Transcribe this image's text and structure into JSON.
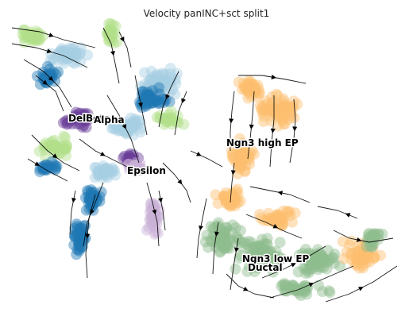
{
  "chart_data": {
    "type": "scatter",
    "title": "Velocity panINC+sct split1",
    "grid": false,
    "axes_visible": false,
    "legend": "on data",
    "clusters": [
      {
        "name": "Delta",
        "color": "#b2df8a"
      },
      {
        "name": "Beta",
        "color": "#1f78b4"
      },
      {
        "name": "Alpha",
        "color": "#a6cee3"
      },
      {
        "name": "Epsilon",
        "color": "#6a3d9a"
      },
      {
        "name": "Epsilon",
        "color": "#cab2d6"
      },
      {
        "name": "Ngn3 high EP",
        "color": "#fdbf6f"
      },
      {
        "name": "Ngn3 low EP",
        "color": "#fdbf6f"
      },
      {
        "name": "Ductal",
        "color": "#8fbc8f"
      }
    ],
    "labels": [
      "Delta",
      "Beta",
      "Alpha",
      "Epsilon",
      "Ngn3 high EP",
      "Ngn3 low EP",
      "Ductal"
    ],
    "embedding": "velocity stream plot with arrows"
  }
}
